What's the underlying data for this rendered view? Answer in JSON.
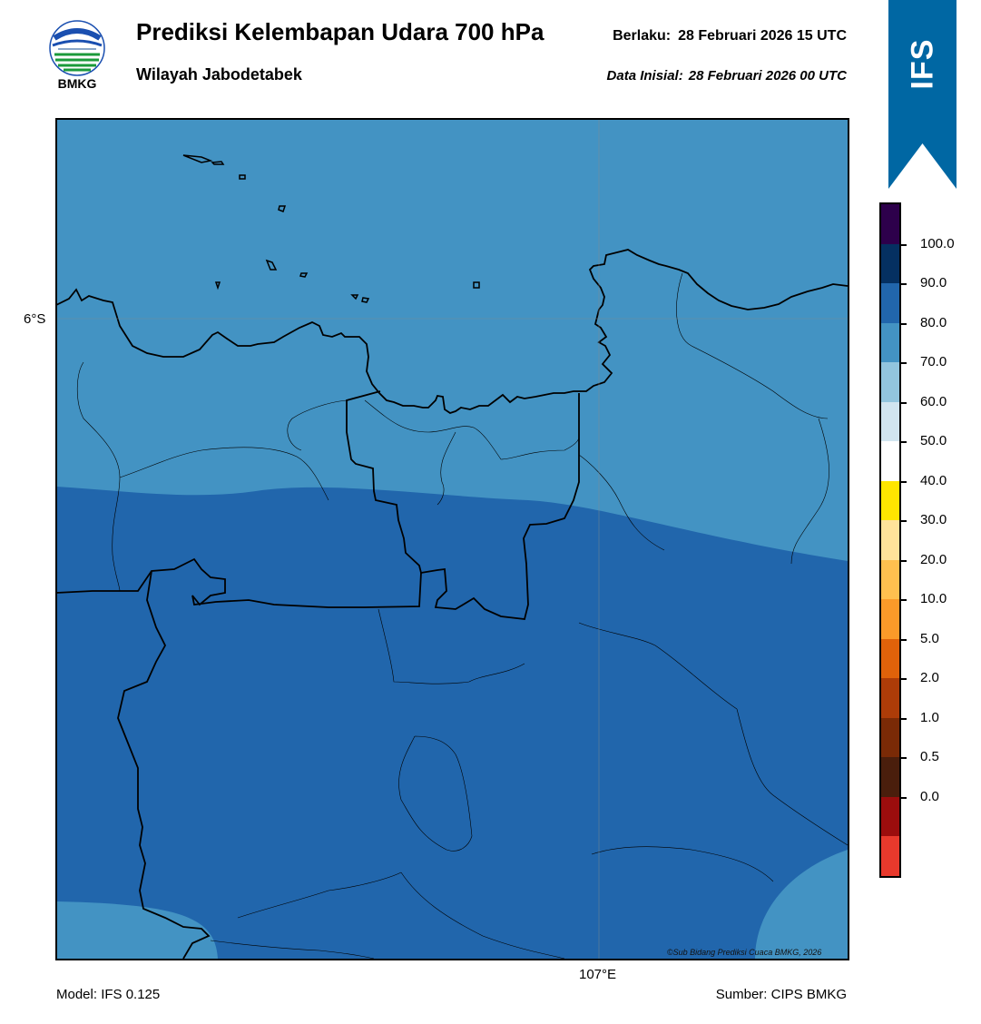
{
  "header": {
    "logo_text": "BMKG",
    "title": "Prediksi Kelembapan Udara 700 hPa",
    "subtitle": "Wilayah Jabodetabek",
    "valid_label": "Berlaku:",
    "valid_time": "28 Februari 2026 15 UTC",
    "init_label": "Data Inisial:",
    "init_time": "28 Februari 2026 00 UTC"
  },
  "ribbon": {
    "label": "IFS",
    "color": "#0067a3"
  },
  "map": {
    "lat_label": "6°S",
    "lon_label": "107°E",
    "credit": "©Sub Bidang Prediksi Cuaca BMKG, 2026",
    "colors": {
      "band_70_80": "#4393c3",
      "band_80_90": "#2166ac",
      "coast": "#000000"
    }
  },
  "colorbar": {
    "labels": [
      "100.0",
      "90.0",
      "80.0",
      "70.0",
      "60.0",
      "50.0",
      "40.0",
      "30.0",
      "20.0",
      "10.0",
      "5.0",
      "2.0",
      "1.0",
      "0.5",
      "0.0"
    ],
    "colors_top_to_bottom": [
      "#2d004b",
      "#053061",
      "#2166ac",
      "#4393c3",
      "#92c5de",
      "#d1e5f0",
      "#ffffff",
      "#ffe600",
      "#ffe39a",
      "#ffc04f",
      "#fb9a29",
      "#e0620a",
      "#ad3c08",
      "#7a2a06",
      "#4a1e0c",
      "#9b0d0d",
      "#e8392c"
    ]
  },
  "footer": {
    "model": "Model: IFS 0.125",
    "source": "Sumber: CIPS BMKG"
  }
}
